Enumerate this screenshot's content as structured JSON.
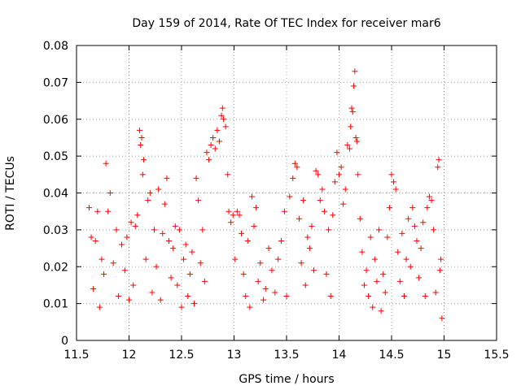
{
  "chart_data": {
    "type": "scatter",
    "title": "Day 159 of 2014, Rate Of TEC Index for receiver mar6",
    "xlabel": "GPS time / hours",
    "ylabel": "ROTI / TECUs",
    "xlim": [
      11.5,
      15.5
    ],
    "ylim": [
      0,
      0.08
    ],
    "grid": true,
    "marker": "+",
    "marker_color": "#ff0000",
    "x_ticks": [
      "11.5",
      "12",
      "12.5",
      "13",
      "13.5",
      "14",
      "14.5",
      "15",
      "15.5"
    ],
    "y_ticks": [
      "0",
      "0.01",
      "0.02",
      "0.03",
      "0.04",
      "0.05",
      "0.06",
      "0.07",
      "0.08"
    ],
    "series": [
      {
        "name": "mar6",
        "points": [
          [
            11.62,
            0.036
          ],
          [
            11.64,
            0.028
          ],
          [
            11.66,
            0.014
          ],
          [
            11.68,
            0.027
          ],
          [
            11.7,
            0.035
          ],
          [
            11.72,
            0.009
          ],
          [
            11.74,
            0.022
          ],
          [
            11.76,
            0.018
          ],
          [
            11.78,
            0.048
          ],
          [
            11.8,
            0.035
          ],
          [
            11.82,
            0.04
          ],
          [
            11.85,
            0.021
          ],
          [
            11.88,
            0.03
          ],
          [
            11.9,
            0.012
          ],
          [
            11.93,
            0.026
          ],
          [
            11.96,
            0.019
          ],
          [
            11.98,
            0.028
          ],
          [
            12.0,
            0.011
          ],
          [
            12.02,
            0.032
          ],
          [
            12.04,
            0.015
          ],
          [
            12.06,
            0.031
          ],
          [
            12.08,
            0.034
          ],
          [
            12.1,
            0.057
          ],
          [
            12.11,
            0.053
          ],
          [
            12.12,
            0.055
          ],
          [
            12.13,
            0.045
          ],
          [
            12.14,
            0.049
          ],
          [
            12.16,
            0.022
          ],
          [
            12.18,
            0.038
          ],
          [
            12.2,
            0.04
          ],
          [
            12.22,
            0.013
          ],
          [
            12.24,
            0.03
          ],
          [
            12.26,
            0.02
          ],
          [
            12.28,
            0.041
          ],
          [
            12.3,
            0.011
          ],
          [
            12.32,
            0.029
          ],
          [
            12.34,
            0.037
          ],
          [
            12.36,
            0.044
          ],
          [
            12.38,
            0.027
          ],
          [
            12.4,
            0.017
          ],
          [
            12.42,
            0.025
          ],
          [
            12.44,
            0.031
          ],
          [
            12.46,
            0.015
          ],
          [
            12.48,
            0.03
          ],
          [
            12.5,
            0.009
          ],
          [
            12.52,
            0.022
          ],
          [
            12.54,
            0.026
          ],
          [
            12.56,
            0.012
          ],
          [
            12.58,
            0.018
          ],
          [
            12.6,
            0.024
          ],
          [
            12.62,
            0.01
          ],
          [
            12.64,
            0.044
          ],
          [
            12.66,
            0.038
          ],
          [
            12.68,
            0.021
          ],
          [
            12.7,
            0.03
          ],
          [
            12.72,
            0.016
          ],
          [
            12.74,
            0.051
          ],
          [
            12.76,
            0.049
          ],
          [
            12.78,
            0.053
          ],
          [
            12.8,
            0.055
          ],
          [
            12.82,
            0.052
          ],
          [
            12.84,
            0.057
          ],
          [
            12.86,
            0.054
          ],
          [
            12.88,
            0.061
          ],
          [
            12.89,
            0.063
          ],
          [
            12.9,
            0.06
          ],
          [
            12.92,
            0.058
          ],
          [
            12.94,
            0.045
          ],
          [
            12.95,
            0.035
          ],
          [
            12.97,
            0.032
          ],
          [
            12.99,
            0.034
          ],
          [
            13.01,
            0.022
          ],
          [
            13.03,
            0.035
          ],
          [
            13.05,
            0.034
          ],
          [
            13.07,
            0.029
          ],
          [
            13.09,
            0.018
          ],
          [
            13.11,
            0.012
          ],
          [
            13.13,
            0.027
          ],
          [
            13.15,
            0.009
          ],
          [
            13.17,
            0.039
          ],
          [
            13.19,
            0.031
          ],
          [
            13.21,
            0.036
          ],
          [
            13.23,
            0.016
          ],
          [
            13.25,
            0.021
          ],
          [
            13.28,
            0.011
          ],
          [
            13.3,
            0.014
          ],
          [
            13.33,
            0.025
          ],
          [
            13.36,
            0.019
          ],
          [
            13.39,
            0.013
          ],
          [
            13.42,
            0.022
          ],
          [
            13.45,
            0.027
          ],
          [
            13.48,
            0.035
          ],
          [
            13.5,
            0.012
          ],
          [
            13.53,
            0.039
          ],
          [
            13.56,
            0.044
          ],
          [
            13.58,
            0.048
          ],
          [
            13.6,
            0.047
          ],
          [
            13.62,
            0.033
          ],
          [
            13.64,
            0.021
          ],
          [
            13.66,
            0.038
          ],
          [
            13.68,
            0.015
          ],
          [
            13.7,
            0.028
          ],
          [
            13.72,
            0.025
          ],
          [
            13.74,
            0.031
          ],
          [
            13.76,
            0.019
          ],
          [
            13.78,
            0.046
          ],
          [
            13.8,
            0.045
          ],
          [
            13.82,
            0.038
          ],
          [
            13.84,
            0.041
          ],
          [
            13.86,
            0.035
          ],
          [
            13.88,
            0.018
          ],
          [
            13.9,
            0.03
          ],
          [
            13.92,
            0.012
          ],
          [
            13.94,
            0.034
          ],
          [
            13.96,
            0.043
          ],
          [
            13.98,
            0.051
          ],
          [
            14.0,
            0.045
          ],
          [
            14.02,
            0.047
          ],
          [
            14.04,
            0.037
          ],
          [
            14.06,
            0.041
          ],
          [
            14.08,
            0.053
          ],
          [
            14.1,
            0.052
          ],
          [
            14.11,
            0.058
          ],
          [
            14.12,
            0.063
          ],
          [
            14.13,
            0.062
          ],
          [
            14.14,
            0.069
          ],
          [
            14.15,
            0.073
          ],
          [
            14.16,
            0.055
          ],
          [
            14.17,
            0.054
          ],
          [
            14.18,
            0.045
          ],
          [
            14.2,
            0.033
          ],
          [
            14.22,
            0.024
          ],
          [
            14.24,
            0.015
          ],
          [
            14.26,
            0.019
          ],
          [
            14.28,
            0.012
          ],
          [
            14.3,
            0.028
          ],
          [
            14.32,
            0.009
          ],
          [
            14.34,
            0.022
          ],
          [
            14.36,
            0.016
          ],
          [
            14.38,
            0.03
          ],
          [
            14.4,
            0.008
          ],
          [
            14.42,
            0.018
          ],
          [
            14.44,
            0.013
          ],
          [
            14.46,
            0.028
          ],
          [
            14.48,
            0.036
          ],
          [
            14.5,
            0.045
          ],
          [
            14.52,
            0.043
          ],
          [
            14.54,
            0.041
          ],
          [
            14.56,
            0.024
          ],
          [
            14.58,
            0.016
          ],
          [
            14.6,
            0.029
          ],
          [
            14.62,
            0.012
          ],
          [
            14.64,
            0.022
          ],
          [
            14.66,
            0.033
          ],
          [
            14.68,
            0.02
          ],
          [
            14.7,
            0.036
          ],
          [
            14.72,
            0.031
          ],
          [
            14.74,
            0.027
          ],
          [
            14.76,
            0.017
          ],
          [
            14.78,
            0.025
          ],
          [
            14.8,
            0.032
          ],
          [
            14.82,
            0.012
          ],
          [
            14.84,
            0.036
          ],
          [
            14.86,
            0.039
          ],
          [
            14.88,
            0.038
          ],
          [
            14.9,
            0.03
          ],
          [
            14.92,
            0.013
          ],
          [
            14.94,
            0.047
          ],
          [
            14.95,
            0.049
          ],
          [
            14.96,
            0.019
          ],
          [
            14.97,
            0.022
          ],
          [
            14.98,
            0.006
          ]
        ]
      }
    ]
  }
}
